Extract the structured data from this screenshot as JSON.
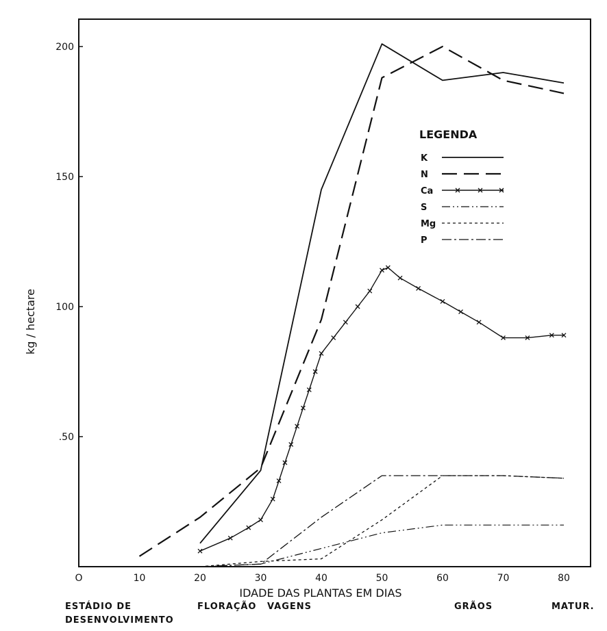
{
  "chart_data": {
    "type": "line",
    "ylabel": "kg / hectare",
    "xlabel": "IDADE DAS PLANTAS EM DIAS",
    "xlim": [
      0,
      80
    ],
    "ylim": [
      0,
      200
    ],
    "x_ticks": [
      "O",
      "10",
      "20",
      "30",
      "40",
      "50",
      "60",
      "70",
      "80"
    ],
    "y_ticks": [
      ".50",
      "100",
      "150",
      "200"
    ],
    "y_tick_values": [
      50,
      100,
      150,
      200
    ],
    "grid": false,
    "legend": {
      "title": "LEGENDA",
      "position": "right"
    },
    "stages": {
      "heading": "ESTÁDIO DE",
      "heading2": "DESENVOLVIMENTO",
      "floracao": "FLORAÇÃO",
      "vagens": "VAGENS",
      "graos": "GRÃOS",
      "matur": "MATUR."
    },
    "series": [
      {
        "name": "K",
        "style": "solid",
        "color": "#111111",
        "points": [
          [
            20,
            9
          ],
          [
            30,
            37
          ],
          [
            40,
            145
          ],
          [
            50,
            201
          ],
          [
            60,
            187
          ],
          [
            70,
            190
          ],
          [
            80,
            186
          ]
        ]
      },
      {
        "name": "N",
        "style": "dash",
        "color": "#111111",
        "points": [
          [
            10,
            4
          ],
          [
            20,
            19
          ],
          [
            30,
            38
          ],
          [
            40,
            95
          ],
          [
            50,
            188
          ],
          [
            60,
            200
          ],
          [
            70,
            187
          ],
          [
            80,
            182
          ]
        ]
      },
      {
        "name": "Ca",
        "style": "cross",
        "color": "#111111",
        "points": [
          [
            20,
            6
          ],
          [
            25,
            11
          ],
          [
            28,
            15
          ],
          [
            30,
            18
          ],
          [
            32,
            26
          ],
          [
            33,
            33
          ],
          [
            34,
            40
          ],
          [
            35,
            47
          ],
          [
            36,
            54
          ],
          [
            37,
            61
          ],
          [
            38,
            68
          ],
          [
            39,
            75
          ],
          [
            40,
            82
          ],
          [
            42,
            88
          ],
          [
            44,
            94
          ],
          [
            46,
            100
          ],
          [
            48,
            106
          ],
          [
            50,
            114
          ],
          [
            51,
            115
          ],
          [
            53,
            111
          ],
          [
            56,
            107
          ],
          [
            60,
            102
          ],
          [
            63,
            98
          ],
          [
            66,
            94
          ],
          [
            70,
            88
          ],
          [
            74,
            88
          ],
          [
            78,
            89
          ],
          [
            80,
            89
          ]
        ]
      },
      {
        "name": "S",
        "style": "dashdotdot",
        "color": "#111111",
        "points": [
          [
            20,
            0
          ],
          [
            30,
            1
          ],
          [
            40,
            7
          ],
          [
            50,
            13
          ],
          [
            60,
            16
          ],
          [
            70,
            16
          ],
          [
            80,
            16
          ]
        ]
      },
      {
        "name": "Mg",
        "style": "dot",
        "color": "#111111",
        "points": [
          [
            20,
            0
          ],
          [
            30,
            2
          ],
          [
            40,
            3
          ],
          [
            50,
            18
          ],
          [
            60,
            35
          ],
          [
            70,
            35
          ],
          [
            80,
            34
          ]
        ]
      },
      {
        "name": "P",
        "style": "dashdot",
        "color": "#111111",
        "points": [
          [
            20,
            0
          ],
          [
            30,
            1
          ],
          [
            40,
            19
          ],
          [
            50,
            35
          ],
          [
            60,
            35
          ],
          [
            70,
            35
          ],
          [
            80,
            34
          ]
        ]
      }
    ]
  }
}
